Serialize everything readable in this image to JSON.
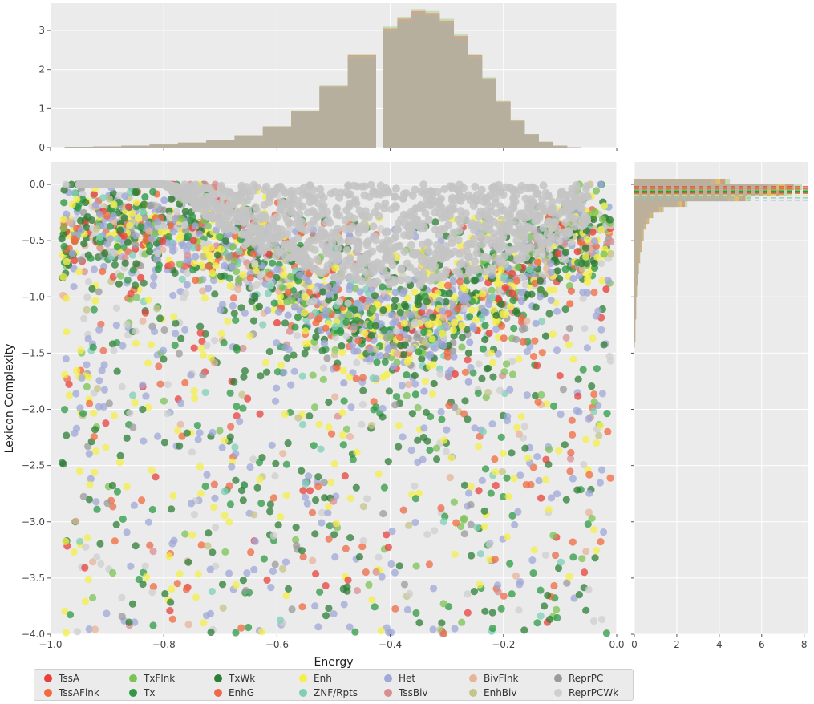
{
  "chart_data": {
    "type": "scatter",
    "xlabel": "Energy",
    "ylabel": "Lexicon Complexity",
    "xlim": [
      -1.0,
      0.0
    ],
    "ylim": [
      -4.0,
      0.2
    ],
    "x_ticks": [
      "−1.0",
      "−0.8",
      "−0.6",
      "−0.4",
      "−0.2",
      "0.0"
    ],
    "y_ticks": [
      "0.0",
      "−0.5",
      "−1.0",
      "−1.5",
      "−2.0",
      "−2.5",
      "−3.0",
      "−3.5",
      "−4.0"
    ],
    "grid": true,
    "legend_position": "bottom",
    "marginal_x": {
      "type": "histogram",
      "ylim": [
        0,
        3.7
      ],
      "y_ticks": [
        "0",
        "1",
        "2",
        "3"
      ],
      "x_values": [
        -0.95,
        -0.9,
        -0.85,
        -0.8,
        -0.75,
        -0.7,
        -0.65,
        -0.6,
        -0.55,
        -0.5,
        -0.45,
        -0.4,
        -0.375,
        -0.35,
        -0.325,
        -0.3,
        -0.275,
        -0.25,
        -0.225,
        -0.2,
        -0.175,
        -0.15,
        -0.125,
        -0.1,
        -0.075
      ],
      "density": [
        0.02,
        0.03,
        0.05,
        0.08,
        0.13,
        0.2,
        0.32,
        0.55,
        0.95,
        1.6,
        2.4,
        3.1,
        3.35,
        3.55,
        3.5,
        3.3,
        2.9,
        2.4,
        1.8,
        1.2,
        0.7,
        0.35,
        0.15,
        0.05,
        0.01
      ]
    },
    "marginal_y": {
      "type": "histogram",
      "orientation": "horizontal",
      "xlim": [
        0,
        8.2
      ],
      "x_ticks": [
        "0",
        "2",
        "4",
        "6",
        "8"
      ],
      "y_values": [
        0.05,
        0.0,
        -0.05,
        -0.1,
        -0.15,
        -0.2,
        -0.25,
        -0.3,
        -0.35,
        -0.4,
        -0.5,
        -0.6,
        -0.7,
        -0.8,
        -0.9,
        -1.0,
        -1.2,
        -1.4
      ],
      "density": [
        4.5,
        7.9,
        7.4,
        5.5,
        2.5,
        1.4,
        0.9,
        0.7,
        0.55,
        0.45,
        0.35,
        0.28,
        0.22,
        0.17,
        0.13,
        0.09,
        0.05,
        0.02
      ]
    },
    "series": [
      {
        "name": "TssA",
        "color": "#e8413c"
      },
      {
        "name": "TssAFlnk",
        "color": "#f26a3d"
      },
      {
        "name": "TxFlnk",
        "color": "#7cc356"
      },
      {
        "name": "Tx",
        "color": "#2f9a46"
      },
      {
        "name": "TxWk",
        "color": "#2e7d36"
      },
      {
        "name": "EnhG",
        "color": "#ee6a4a"
      },
      {
        "name": "Enh",
        "color": "#f4ef4a"
      },
      {
        "name": "ZNF/Rpts",
        "color": "#7fcfb7"
      },
      {
        "name": "Het",
        "color": "#9fa8d8"
      },
      {
        "name": "TssBiv",
        "color": "#d98f92"
      },
      {
        "name": "BivFlnk",
        "color": "#e7b49a"
      },
      {
        "name": "EnhBiv",
        "color": "#c5c48b"
      },
      {
        "name": "ReprPC",
        "color": "#9b9b9b"
      },
      {
        "name": "ReprPCWk",
        "color": "#cfcfcf"
      }
    ]
  }
}
